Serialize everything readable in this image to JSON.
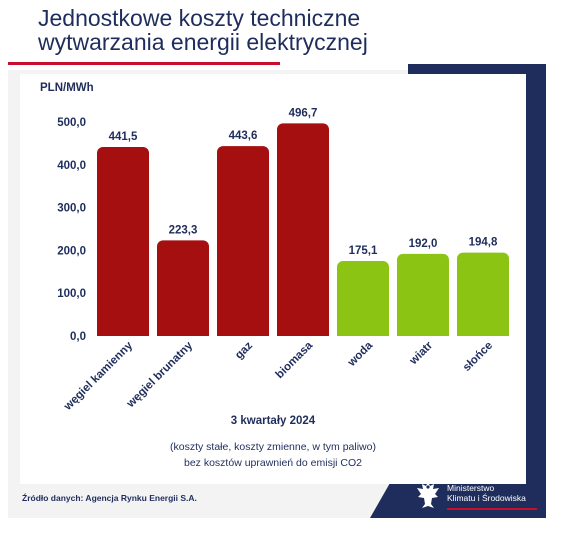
{
  "header": {
    "title_line1": "Jednostkowe koszty techniczne",
    "title_line2": "wytwarzania energii elektrycznej"
  },
  "chart_data": {
    "type": "bar",
    "ylabel": "PLN/MWh",
    "xlabel": "3 kwartały 2024",
    "note_line1": "(koszty stałe, koszty zmienne, w tym paliwo)",
    "note_line2": "bez kosztów uprawnień do emisji CO2",
    "ylim": [
      0,
      500
    ],
    "yticks": [
      "0,0",
      "100,0",
      "200,0",
      "300,0",
      "400,0",
      "500,0"
    ],
    "categories": [
      "węgiel kamienny",
      "węgiel brunatny",
      "gaz",
      "biomasa",
      "woda",
      "wiatr",
      "słońce"
    ],
    "values": [
      441.5,
      223.3,
      443.6,
      496.7,
      175.1,
      192.0,
      194.8
    ],
    "value_labels": [
      "441,5",
      "223,3",
      "443,6",
      "496,7",
      "175,1",
      "192,0",
      "194,8"
    ],
    "colors": [
      "#a50f0f",
      "#a50f0f",
      "#a50f0f",
      "#a50f0f",
      "#8cc414",
      "#8cc414",
      "#8cc414"
    ],
    "grid": false
  },
  "footer": {
    "source": "Źródło danych: Agencja Rynku Energii S.A.",
    "ministry_line1": "Ministerstwo",
    "ministry_line2": "Klimatu i Środowiska"
  },
  "colors": {
    "navy": "#1f2d5c",
    "accent_red": "#c8102e",
    "fossil_bar": "#a50f0f",
    "renewable_bar": "#8cc414"
  }
}
